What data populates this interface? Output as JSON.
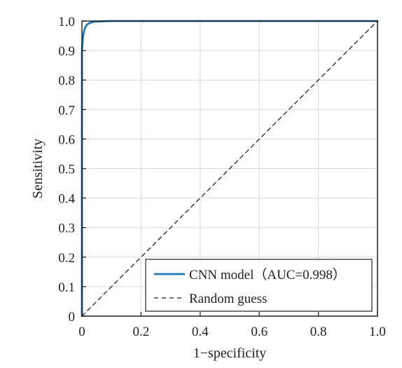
{
  "chart_data": {
    "type": "line",
    "title": "",
    "xlabel": "1−specificity",
    "ylabel": "Sensitivity",
    "xlim": [
      0,
      1
    ],
    "ylim": [
      0,
      1
    ],
    "xticks": [
      0,
      0.2,
      0.4,
      0.6,
      0.8,
      1.0
    ],
    "xtick_labels": [
      "0",
      "0.2",
      "0.4",
      "0.6",
      "0.8",
      "1.0"
    ],
    "yticks": [
      0,
      0.1,
      0.2,
      0.3,
      0.4,
      0.5,
      0.6,
      0.7,
      0.8,
      0.9,
      1.0
    ],
    "ytick_labels": [
      "0",
      "0.1",
      "0.2",
      "0.3",
      "0.4",
      "0.5",
      "0.6",
      "0.7",
      "0.8",
      "0.9",
      "1.0"
    ],
    "grid": true,
    "legend_position": "bottom-right",
    "series": [
      {
        "name": "CNN model（AUC=0.998）",
        "color": "#1f77b4",
        "style": "solid",
        "x": [
          0,
          0,
          0.002,
          0.004,
          0.007,
          0.01,
          0.015,
          0.02,
          0.03,
          0.045,
          0.07,
          0.1,
          0.3,
          0.6,
          1.0
        ],
        "y": [
          0,
          0.9,
          0.93,
          0.95,
          0.965,
          0.975,
          0.985,
          0.99,
          0.995,
          0.998,
          0.999,
          1.0,
          1.0,
          1.0,
          1.0
        ]
      },
      {
        "name": "Random guess",
        "color": "#222222",
        "style": "dashed",
        "x": [
          0,
          1
        ],
        "y": [
          0,
          1
        ]
      }
    ]
  }
}
